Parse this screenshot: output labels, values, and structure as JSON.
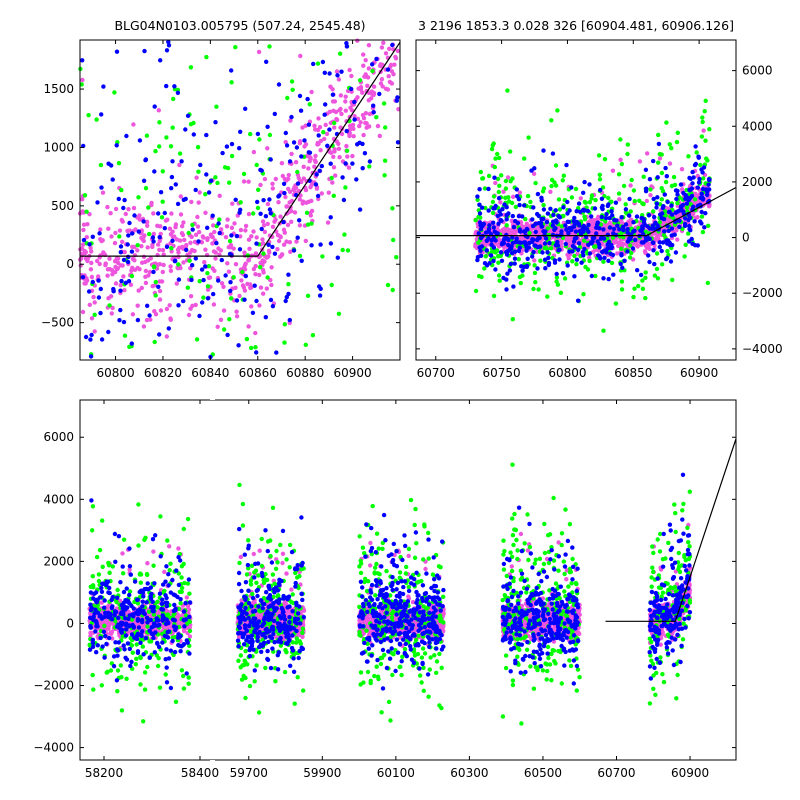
{
  "chart_data": [
    {
      "id": "top-left",
      "type": "scatter",
      "title": "BLG04N0103.005795 (507.24, 2545.48)",
      "xlim": [
        60785,
        60920
      ],
      "ylim": [
        -820,
        1920
      ],
      "xticks": [
        60800,
        60820,
        60840,
        60860,
        60880,
        60900
      ],
      "yticks": [
        -500,
        0,
        500,
        1000,
        1500
      ],
      "xtick_labels": [
        "60800",
        "60820",
        "60840",
        "60860",
        "60880",
        "60900"
      ],
      "ytick_labels": [
        "−500",
        "0",
        "500",
        "1000",
        "1500"
      ],
      "ytick_side": "left",
      "model_line": [
        [
          60785,
          70
        ],
        [
          60860,
          70
        ],
        [
          60920,
          1900
        ]
      ]
    },
    {
      "id": "top-right",
      "type": "scatter",
      "title": "3 2196 1853.3 0.028 326 [60904.481, 60906.126]",
      "xlim": [
        60685,
        60928
      ],
      "ylim": [
        -4400,
        7100
      ],
      "xticks": [
        60700,
        60750,
        60800,
        60850,
        60900
      ],
      "yticks": [
        -4000,
        -2000,
        0,
        2000,
        4000,
        6000
      ],
      "xtick_labels": [
        "60700",
        "60750",
        "60800",
        "60850",
        "60900"
      ],
      "ytick_labels": [
        "−4000",
        "−2000",
        "0",
        "2000",
        "4000",
        "6000"
      ],
      "ytick_side": "right",
      "model_line": [
        [
          60685,
          70
        ],
        [
          60860,
          70
        ],
        [
          60928,
          1800
        ]
      ]
    },
    {
      "id": "bottom",
      "type": "scatter",
      "title": "",
      "ylim": [
        -4400,
        7200
      ],
      "yticks": [
        -4000,
        -2000,
        0,
        2000,
        4000,
        6000
      ],
      "ytick_labels": [
        "−4000",
        "−2000",
        "0",
        "2000",
        "4000",
        "6000"
      ],
      "ytick_side": "left",
      "broken_x_axis": true,
      "segments": [
        {
          "xlim": [
            58150,
            58425
          ],
          "xticks": [
            58200,
            58400
          ],
          "xtick_labels": [
            "58200",
            "58400"
          ]
        },
        {
          "xlim": [
            59600,
            61025
          ],
          "xticks": [
            59700,
            59900,
            60100,
            60300,
            60500,
            60700,
            60900
          ],
          "xtick_labels": [
            "59700",
            "59900",
            "60100",
            "60300",
            "60500",
            "60700",
            "60900"
          ]
        }
      ],
      "seasons": [
        [
          58170,
          58380
        ],
        [
          59670,
          59850
        ],
        [
          60000,
          60230
        ],
        [
          60390,
          60600
        ],
        [
          60790,
          60900
        ]
      ],
      "model_line": [
        [
          60670,
          70
        ],
        [
          60860,
          70
        ],
        [
          61025,
          5950
        ]
      ]
    }
  ],
  "colors": {
    "series_1": "#0000ff",
    "series_2": "#00ff00",
    "series_3": "#ee55dd",
    "line": "#000000"
  }
}
